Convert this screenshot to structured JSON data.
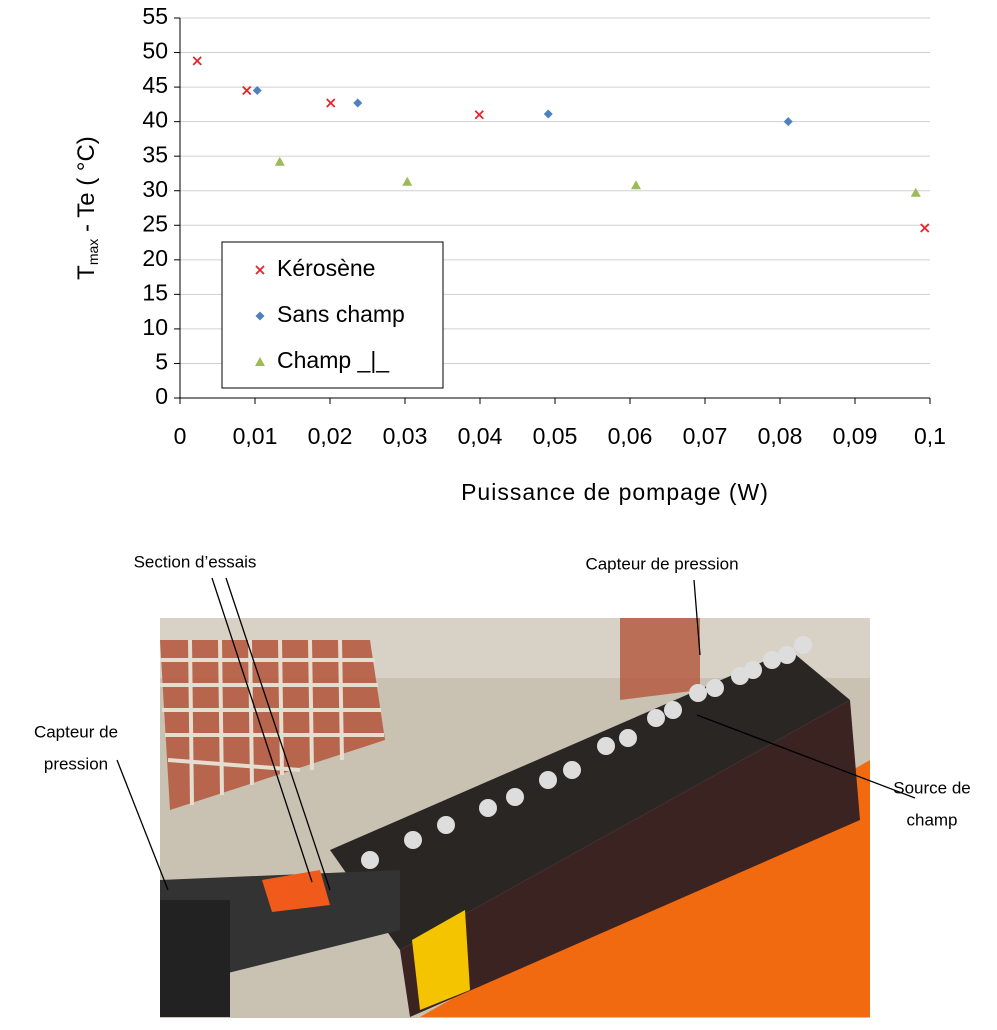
{
  "chart_data": {
    "type": "scatter",
    "xlabel": "Puissance de pompage (W)",
    "ylabel": {
      "main": "T",
      "sub": "max",
      "rest": " - Te  ( °C)"
    },
    "xlim": [
      0,
      0.1
    ],
    "ylim": [
      0,
      55
    ],
    "xticks": [
      0,
      {
        "value": 0.01,
        "label": "0,01"
      },
      {
        "value": 0.02,
        "label": "0,02"
      },
      {
        "value": 0.03,
        "label": "0,03"
      },
      {
        "value": 0.04,
        "label": "0,04"
      },
      {
        "value": 0.05,
        "label": "0,05"
      },
      {
        "value": 0.06,
        "label": "0,06"
      },
      {
        "value": 0.07,
        "label": "0,07"
      },
      {
        "value": 0.08,
        "label": "0,08"
      },
      {
        "value": 0.09,
        "label": "0,09"
      },
      {
        "value": 0.1,
        "label": "0,1"
      }
    ],
    "yticks": [
      0,
      5,
      10,
      15,
      20,
      25,
      30,
      35,
      40,
      45,
      50,
      55
    ],
    "grid": true,
    "legend": "lower left",
    "series": [
      {
        "name": "Kérosène",
        "color": "#e8242a",
        "marker": "x",
        "x": [
          0.0023,
          0.0089,
          0.0201,
          0.0399,
          0.0993
        ],
        "values": [
          48.8,
          44.5,
          42.7,
          41.0,
          24.6
        ]
      },
      {
        "name": "Sans champ",
        "color": "#4f81bd",
        "marker": "diamond",
        "x": [
          0.0103,
          0.0237,
          0.0491,
          0.0811
        ],
        "values": [
          44.5,
          42.7,
          41.1,
          40.0
        ]
      },
      {
        "name": "Champ _|_",
        "color": "#9bbb59",
        "marker": "triangle",
        "x": [
          0.0133,
          0.0303,
          0.0608,
          0.0981
        ],
        "values": [
          34.2,
          31.3,
          30.8,
          29.7
        ]
      }
    ]
  },
  "photo": {
    "annotations": [
      {
        "lines": [
          "Section d’essais"
        ]
      },
      {
        "lines": [
          "Capteur de pression"
        ]
      },
      {
        "lines": [
          "Capteur de",
          "pression"
        ]
      },
      {
        "lines": [
          "Source de",
          "champ"
        ]
      }
    ]
  }
}
